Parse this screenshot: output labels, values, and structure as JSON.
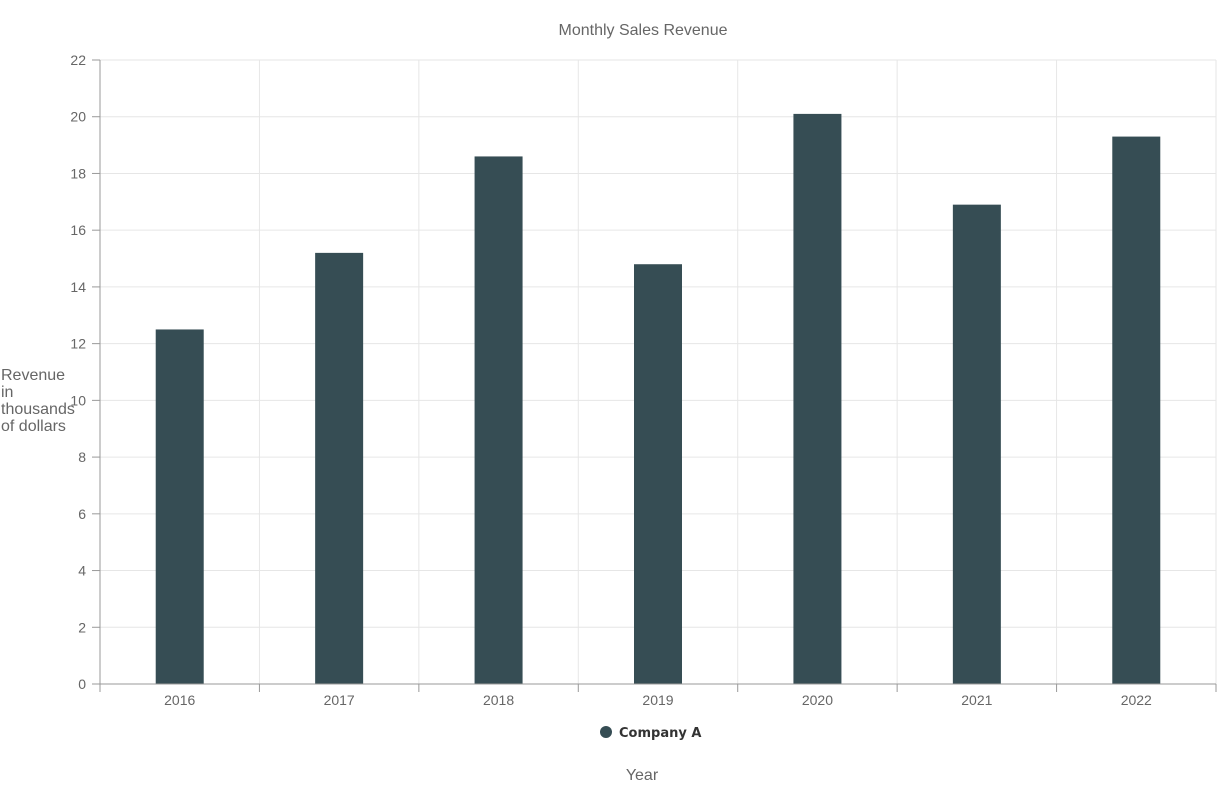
{
  "chart_data": {
    "type": "bar",
    "title": "Monthly Sales Revenue",
    "xlabel": "Year",
    "ylabel": "Revenue in thousands of dollars",
    "categories": [
      "2016",
      "2017",
      "2018",
      "2019",
      "2020",
      "2021",
      "2022"
    ],
    "series": [
      {
        "name": "Company A",
        "values": [
          12.5,
          15.2,
          18.6,
          14.8,
          20.1,
          16.9,
          19.3
        ],
        "color": "#364d54"
      }
    ],
    "ylim": [
      0,
      22
    ],
    "yticks": [
      0,
      2,
      4,
      6,
      8,
      10,
      12,
      14,
      16,
      18,
      20,
      22
    ],
    "grid": true,
    "legend": "bottom-center"
  }
}
